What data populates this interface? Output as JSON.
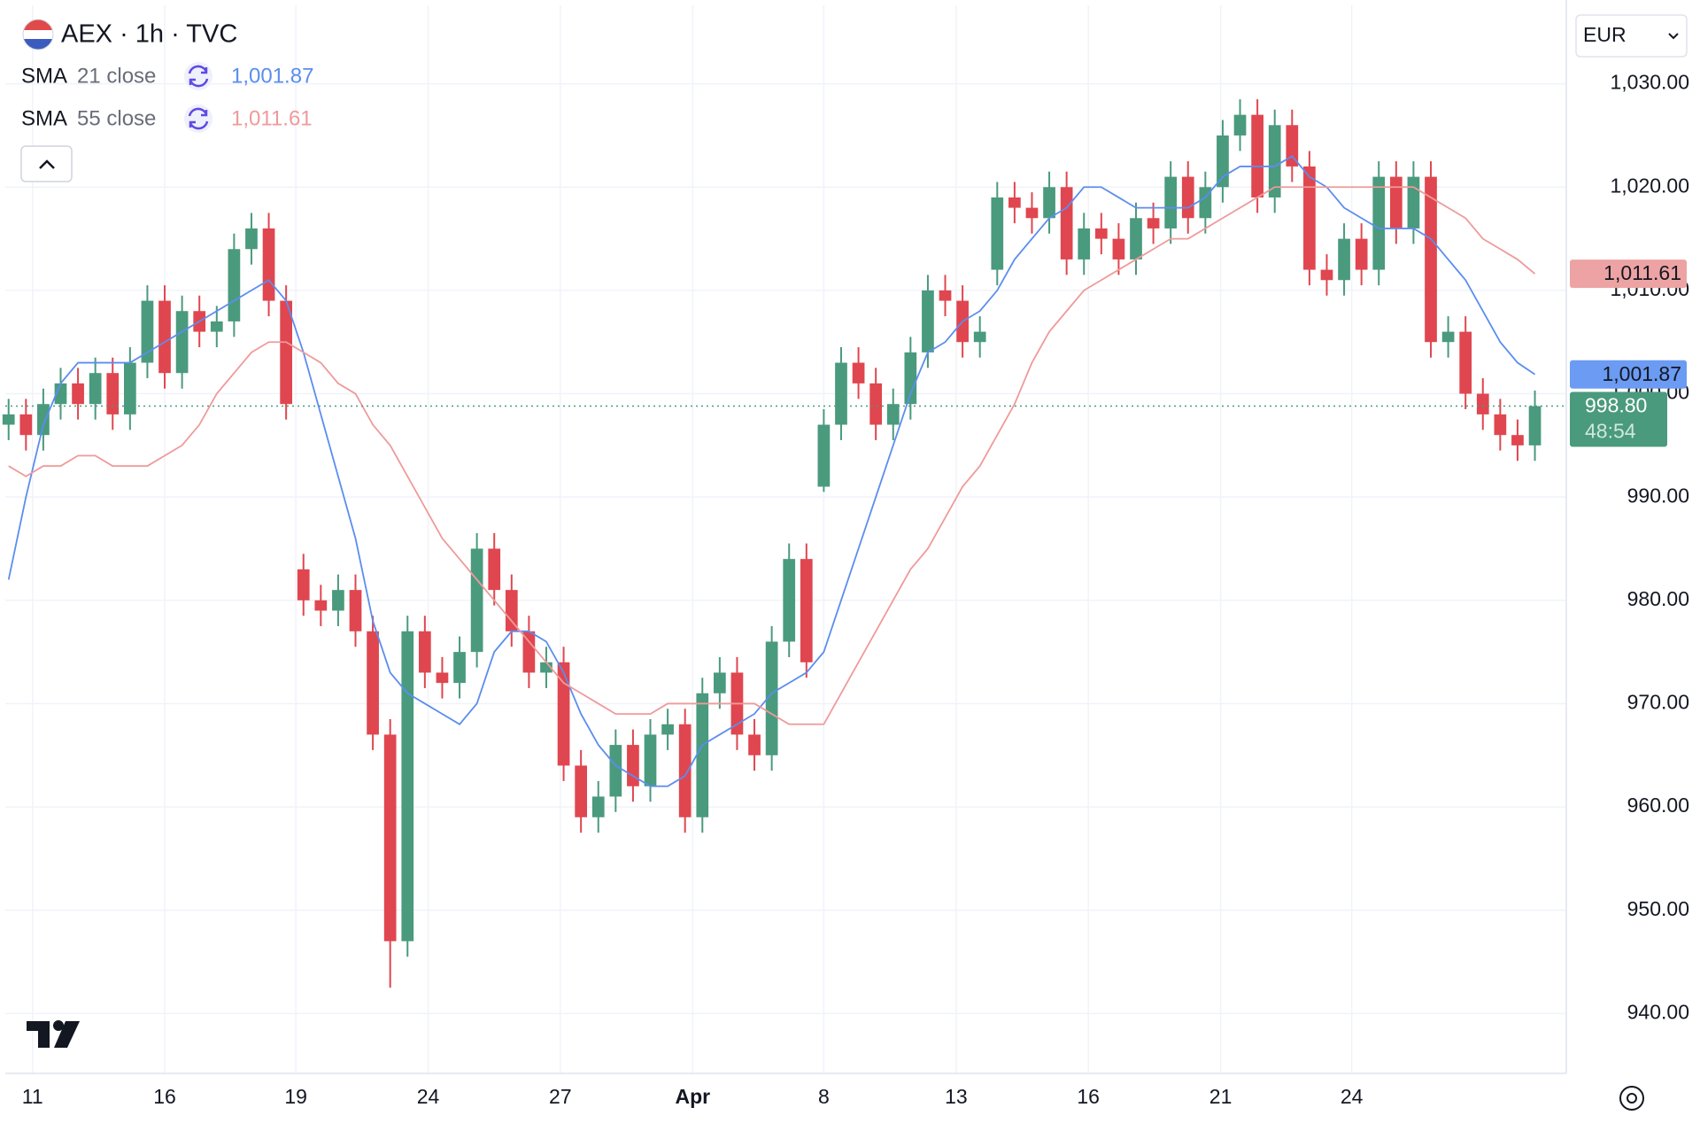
{
  "chart_data": {
    "type": "candlestick",
    "title": "AEX · 1h · TVC",
    "currency": "EUR",
    "up_color": "#4a9a7e",
    "down_color": "#e0464f",
    "grid": true,
    "x": [
      0,
      1,
      2,
      3,
      4,
      5,
      6,
      7,
      8,
      9,
      10,
      11,
      12,
      13,
      14,
      15,
      16,
      17,
      18,
      19,
      20,
      21,
      22,
      23,
      24,
      25,
      26,
      27,
      28,
      29,
      30,
      31,
      32,
      33,
      34,
      35,
      36,
      37,
      38,
      39,
      40,
      41,
      42,
      43,
      44,
      45,
      46,
      47,
      48,
      49,
      50,
      51,
      52,
      53,
      54,
      55,
      56,
      57,
      58,
      59,
      60,
      61,
      62,
      63,
      64,
      65,
      66,
      67,
      68,
      69,
      70,
      71,
      72,
      73,
      74,
      75,
      76,
      77,
      78,
      79,
      80,
      81,
      82,
      83,
      84,
      85,
      86,
      87,
      88
    ],
    "open": [
      997,
      998,
      996,
      999,
      1001,
      999,
      1002,
      998,
      1003,
      1009,
      1002,
      1008,
      1006,
      1007,
      1014,
      1016,
      1009,
      983,
      980,
      979,
      981,
      977,
      967,
      947,
      977,
      973,
      972,
      975,
      985,
      981,
      977,
      973,
      974,
      964,
      959,
      961,
      966,
      962,
      967,
      968,
      959,
      971,
      973,
      967,
      965,
      976,
      984,
      991,
      997,
      1003,
      1001,
      997,
      999,
      1004,
      1010,
      1009,
      1005,
      1012,
      1019,
      1018,
      1017,
      1020,
      1013,
      1016,
      1015,
      1013,
      1017,
      1016,
      1021,
      1017,
      1020,
      1025,
      1027,
      1019,
      1026,
      1022,
      1012,
      1011,
      1015,
      1012,
      1021,
      1016,
      1021,
      1005,
      1006,
      1000,
      998,
      996,
      995
    ],
    "high": [
      999.5,
      999.5,
      1000.5,
      1002.5,
      1002.5,
      1003.5,
      1003.5,
      1004.5,
      1010.5,
      1010.5,
      1009.5,
      1009.5,
      1008.5,
      1015.5,
      1017.5,
      1017.5,
      1010.5,
      984.5,
      981.5,
      982.5,
      982.5,
      978.5,
      968.5,
      978.5,
      978.5,
      974.5,
      976.5,
      986.5,
      986.5,
      982.5,
      978.5,
      975.5,
      975.5,
      965.5,
      962.5,
      967.5,
      967.5,
      968.5,
      969.5,
      969.5,
      972.5,
      974.5,
      974.5,
      968.5,
      977.5,
      985.5,
      985.5,
      998.5,
      1004.5,
      1004.5,
      1002.5,
      1000.5,
      1005.5,
      1011.5,
      1011.5,
      1010.5,
      1007.5,
      1020.5,
      1020.5,
      1019.5,
      1021.5,
      1021.5,
      1017.5,
      1017.5,
      1016.5,
      1018.5,
      1018.5,
      1022.5,
      1022.5,
      1021.5,
      1026.5,
      1028.5,
      1028.5,
      1027.5,
      1027.5,
      1023.5,
      1013.5,
      1016.5,
      1016.5,
      1022.5,
      1022.5,
      1022.5,
      1022.5,
      1007.5,
      1007.5,
      1001.5,
      999.5,
      997.5,
      1000.3
    ],
    "low": [
      995.5,
      994.5,
      994.5,
      997.5,
      997.5,
      997.5,
      996.5,
      996.5,
      1001.5,
      1000.5,
      1000.5,
      1004.5,
      1004.5,
      1005.5,
      1012.5,
      1007.5,
      997.5,
      978.5,
      977.5,
      977.5,
      975.5,
      965.5,
      942.5,
      945.5,
      971.5,
      970.5,
      970.5,
      973.5,
      979.5,
      975.5,
      971.5,
      971.5,
      962.5,
      957.5,
      957.5,
      959.5,
      960.5,
      960.5,
      965.5,
      957.5,
      957.5,
      969.5,
      965.5,
      963.5,
      963.5,
      974.5,
      972.5,
      990.5,
      995.5,
      999.5,
      995.5,
      995.5,
      997.5,
      1002.5,
      1007.5,
      1003.5,
      1003.5,
      1010.5,
      1016.5,
      1015.5,
      1015.5,
      1011.5,
      1011.5,
      1013.5,
      1011.5,
      1011.5,
      1014.5,
      1014.5,
      1015.5,
      1015.5,
      1018.5,
      1023.5,
      1017.5,
      1017.5,
      1020.5,
      1010.5,
      1009.5,
      1009.5,
      1010.5,
      1010.5,
      1014.5,
      1014.5,
      1003.5,
      1003.5,
      998.5,
      996.5,
      994.5,
      993.5,
      993.5
    ],
    "close": [
      998,
      996,
      999,
      1001,
      999,
      1002,
      998,
      1003,
      1009,
      1002,
      1008,
      1006,
      1007,
      1014,
      1016,
      1009,
      999,
      980,
      979,
      981,
      977,
      967,
      947,
      977,
      973,
      972,
      975,
      985,
      981,
      977,
      973,
      974,
      964,
      959,
      961,
      966,
      962,
      967,
      968,
      959,
      971,
      973,
      967,
      965,
      976,
      984,
      974,
      997,
      1003,
      1001,
      997,
      999,
      1004,
      1010,
      1009,
      1005,
      1006,
      1019,
      1018,
      1017,
      1020,
      1013,
      1016,
      1015,
      1013,
      1017,
      1016,
      1021,
      1017,
      1020,
      1025,
      1027,
      1019,
      1026,
      1022,
      1012,
      1011,
      1015,
      1012,
      1021,
      1016,
      1021,
      1005,
      1006,
      1000,
      998,
      996,
      995,
      998.8
    ],
    "series": [
      {
        "name": "SMA",
        "params": "21 close",
        "color": "#5b8def",
        "tag_color": "#6b9bf2",
        "last_label": "1,001.87",
        "values": [
          982,
          990,
          997,
          1001,
          1003,
          1003,
          1003,
          1003,
          1004,
          1005,
          1006,
          1007,
          1008,
          1009,
          1010,
          1011,
          1009,
          1004,
          998,
          992,
          986,
          978,
          973,
          971,
          970,
          969,
          968,
          970,
          975,
          977,
          977,
          976,
          973,
          969,
          966,
          964,
          963,
          962,
          962,
          963,
          966,
          967,
          968,
          969,
          971,
          972,
          973,
          975,
          980,
          985,
          990,
          995,
          1000,
          1004,
          1005,
          1007,
          1008,
          1010,
          1013,
          1015,
          1017,
          1018,
          1020,
          1020,
          1019,
          1018,
          1018,
          1018,
          1018,
          1019,
          1021,
          1022,
          1022,
          1022,
          1023,
          1021,
          1020,
          1018,
          1017,
          1016,
          1016,
          1016,
          1015,
          1013,
          1011,
          1008,
          1005,
          1003,
          1001.87
        ]
      },
      {
        "name": "SMA",
        "params": "55 close",
        "color": "#ef9a9a",
        "tag_color": "#eda3a3",
        "last_label": "1,011.61",
        "values": [
          993,
          992,
          993,
          993,
          994,
          994,
          993,
          993,
          993,
          994,
          995,
          997,
          1000,
          1002,
          1004,
          1005,
          1005,
          1004,
          1003,
          1001,
          1000,
          997,
          995,
          992,
          989,
          986,
          984,
          982,
          980,
          978,
          976,
          974,
          972,
          971,
          970,
          969,
          969,
          969,
          970,
          970,
          970,
          970,
          970,
          970,
          969,
          968,
          968,
          968,
          971,
          974,
          977,
          980,
          983,
          985,
          988,
          991,
          993,
          996,
          999,
          1003,
          1006,
          1008,
          1010,
          1011,
          1012,
          1013,
          1014,
          1015,
          1015,
          1016,
          1017,
          1018,
          1019,
          1020,
          1020,
          1020,
          1020,
          1020,
          1020,
          1020,
          1020,
          1020,
          1019,
          1018,
          1017,
          1015,
          1014,
          1013,
          1011.61
        ]
      }
    ],
    "last_price": {
      "value": 998.8,
      "label": "998.80",
      "countdown": "48:54"
    },
    "xlim": [
      -0.19,
      89.81
    ],
    "xticks": [
      {
        "value": 1.38,
        "label": "11"
      },
      {
        "value": 9.0,
        "label": "16"
      },
      {
        "value": 16.56,
        "label": "19"
      },
      {
        "value": 24.19,
        "label": "24"
      },
      {
        "value": 31.81,
        "label": "27"
      },
      {
        "value": 39.44,
        "label": "Apr"
      },
      {
        "value": 47.0,
        "label": "8"
      },
      {
        "value": 54.63,
        "label": "13"
      },
      {
        "value": 62.25,
        "label": "16"
      },
      {
        "value": 69.88,
        "label": "21"
      },
      {
        "value": 77.44,
        "label": "24"
      }
    ],
    "ylim": [
      934.2,
      1037.6
    ],
    "yticks": [
      {
        "value": 940,
        "label": "940.00"
      },
      {
        "value": 950,
        "label": "950.00"
      },
      {
        "value": 960,
        "label": "960.00"
      },
      {
        "value": 970,
        "label": "970.00"
      },
      {
        "value": 980,
        "label": "980.00"
      },
      {
        "value": 990,
        "label": "990.00"
      },
      {
        "value": 1000,
        "label": "1,000.00"
      },
      {
        "value": 1010,
        "label": "1,010.00"
      },
      {
        "value": 1020,
        "label": "1,020.00"
      },
      {
        "value": 1030,
        "label": "1,030.00"
      }
    ]
  }
}
